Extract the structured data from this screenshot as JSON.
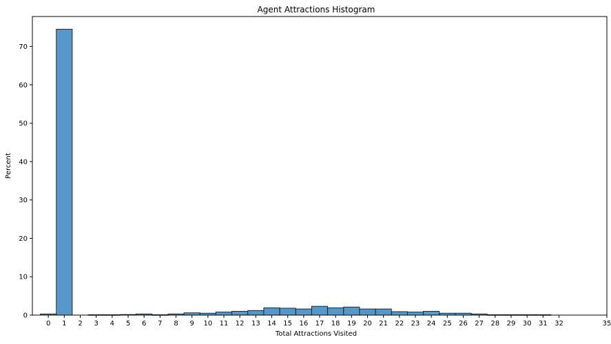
{
  "chart_data": {
    "type": "bar",
    "title": "Agent Attractions Histogram",
    "xlabel": "Total Attractions Visited",
    "ylabel": "Percent",
    "xlim": [
      -1,
      35
    ],
    "ylim": [
      0,
      77.8
    ],
    "x_ticks": [
      0,
      1,
      2,
      3,
      4,
      5,
      6,
      7,
      8,
      9,
      10,
      11,
      12,
      13,
      14,
      15,
      16,
      17,
      18,
      19,
      20,
      21,
      22,
      23,
      24,
      25,
      26,
      27,
      28,
      29,
      30,
      31,
      32,
      35
    ],
    "y_ticks": [
      0,
      10,
      20,
      30,
      40,
      50,
      60,
      70
    ],
    "bars": [
      {
        "x": 0,
        "value": 0.3
      },
      {
        "x": 1,
        "value": 74.5
      },
      {
        "x": 3,
        "value": 0.1
      },
      {
        "x": 4,
        "value": 0.1
      },
      {
        "x": 5,
        "value": 0.15
      },
      {
        "x": 6,
        "value": 0.3
      },
      {
        "x": 7,
        "value": 0.1
      },
      {
        "x": 8,
        "value": 0.3
      },
      {
        "x": 9,
        "value": 0.6
      },
      {
        "x": 10,
        "value": 0.5
      },
      {
        "x": 11,
        "value": 0.8
      },
      {
        "x": 12,
        "value": 1.0
      },
      {
        "x": 13,
        "value": 1.2
      },
      {
        "x": 14,
        "value": 1.9
      },
      {
        "x": 15,
        "value": 1.8
      },
      {
        "x": 16,
        "value": 1.6
      },
      {
        "x": 17,
        "value": 2.3
      },
      {
        "x": 18,
        "value": 1.9
      },
      {
        "x": 19,
        "value": 2.1
      },
      {
        "x": 20,
        "value": 1.6
      },
      {
        "x": 21,
        "value": 1.6
      },
      {
        "x": 22,
        "value": 0.9
      },
      {
        "x": 23,
        "value": 0.8
      },
      {
        "x": 24,
        "value": 1.0
      },
      {
        "x": 25,
        "value": 0.5
      },
      {
        "x": 26,
        "value": 0.5
      },
      {
        "x": 27,
        "value": 0.3
      },
      {
        "x": 28,
        "value": 0.1
      },
      {
        "x": 29,
        "value": 0.1
      },
      {
        "x": 30,
        "value": 0.1
      },
      {
        "x": 31,
        "value": 0.1
      }
    ],
    "bar_color": "#5497c8",
    "edge_color": "#1a1a1a",
    "grid": false,
    "legend": "none"
  }
}
